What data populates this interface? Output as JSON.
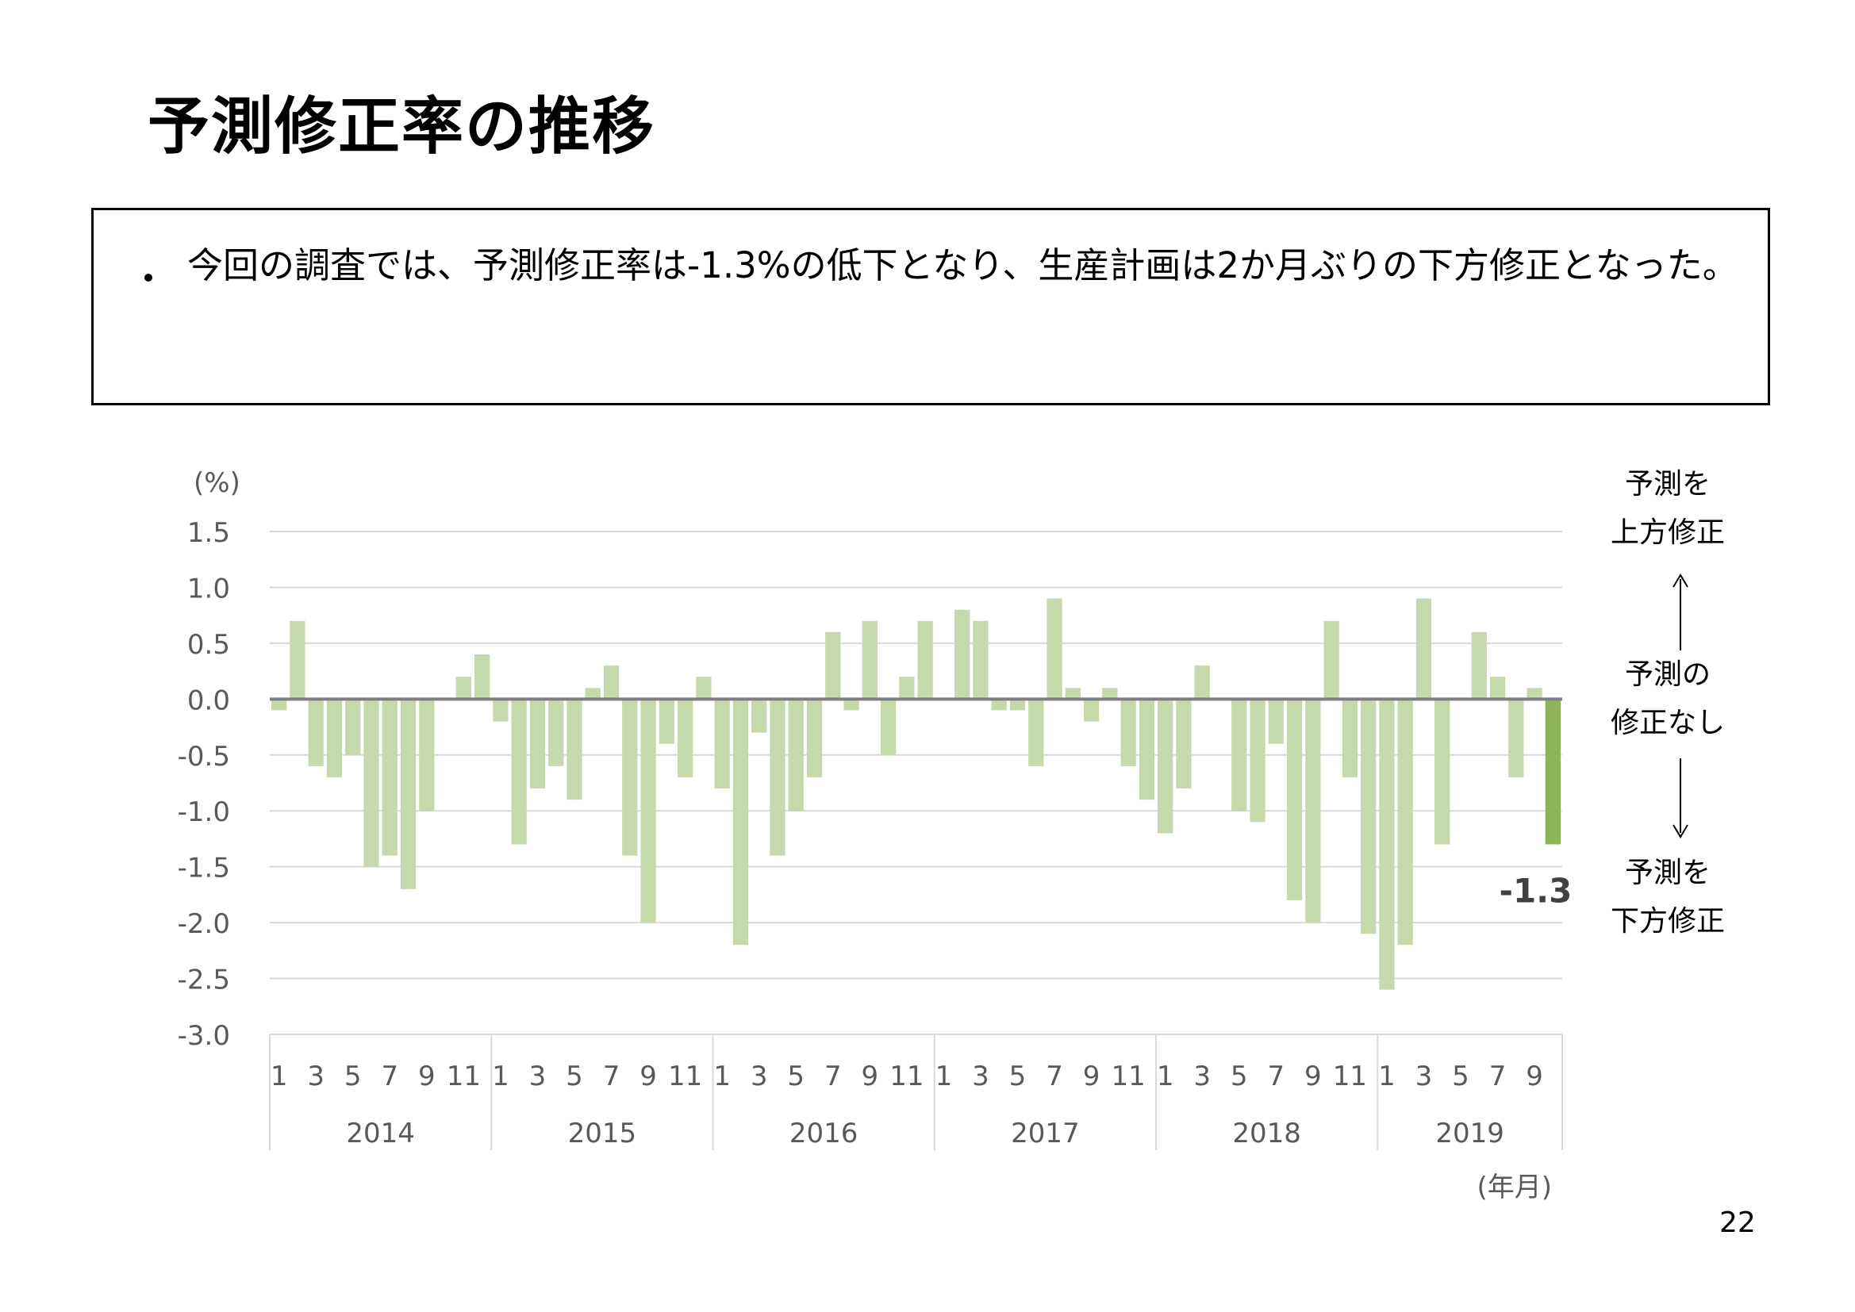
{
  "slide": {
    "title": "予測修正率の推移",
    "bullet": "今回の調査では、予測修正率は-1.3%の低下となり、生産計画は2か月ぶりの下方修正となった。",
    "page_number": "22"
  },
  "side_labels": {
    "up": "予測を\n上方修正",
    "none": "予測の\n修正なし",
    "down": "予測を\n下方修正"
  },
  "colors": {
    "bar": "#c5d9ab",
    "highlight": "#8fb35a",
    "zero_line": "#7f7f7f",
    "grid": "#d9d9d9",
    "text": "#595959"
  },
  "chart_data": {
    "type": "bar",
    "title": "",
    "ylabel": "(%)",
    "xlabel": "(年月)",
    "ylim": [
      -3.0,
      1.5
    ],
    "ytick_step": 0.5,
    "ytick_labels": [
      "1.5",
      "1.0",
      "0.5",
      "0.0",
      "-0.5",
      "-1.0",
      "-1.5",
      "-2.0",
      "-2.5",
      "-3.0"
    ],
    "grid": true,
    "years": [
      {
        "label": "2014",
        "months": 12
      },
      {
        "label": "2015",
        "months": 12
      },
      {
        "label": "2016",
        "months": 12
      },
      {
        "label": "2017",
        "months": 12
      },
      {
        "label": "2018",
        "months": 12
      },
      {
        "label": "2019",
        "months": 10
      }
    ],
    "month_tick_labels": [
      "1",
      "3",
      "5",
      "7",
      "9",
      "11"
    ],
    "values": [
      -0.1,
      0.7,
      -0.6,
      -0.7,
      -0.5,
      -1.5,
      -1.4,
      -1.7,
      -1.0,
      0.0,
      0.2,
      0.4,
      -0.2,
      -1.3,
      -0.8,
      -0.6,
      -0.9,
      0.1,
      0.3,
      -1.4,
      -2.0,
      -0.4,
      -0.7,
      0.2,
      -0.8,
      -2.2,
      -0.3,
      -1.4,
      -1.0,
      -0.7,
      0.6,
      -0.1,
      0.7,
      -0.5,
      0.2,
      0.7,
      0.0,
      0.8,
      0.7,
      -0.1,
      -0.1,
      -0.6,
      0.9,
      0.1,
      -0.2,
      0.1,
      -0.6,
      -0.9,
      -1.2,
      -0.8,
      0.3,
      0.0,
      -1.0,
      -1.1,
      -0.4,
      -1.8,
      -2.0,
      0.7,
      -0.7,
      -2.1,
      -2.6,
      -2.2,
      0.9,
      -1.3,
      0.0,
      0.6,
      0.2,
      -0.7,
      0.1,
      -1.3
    ],
    "highlight": {
      "label": "-1.3"
    }
  }
}
